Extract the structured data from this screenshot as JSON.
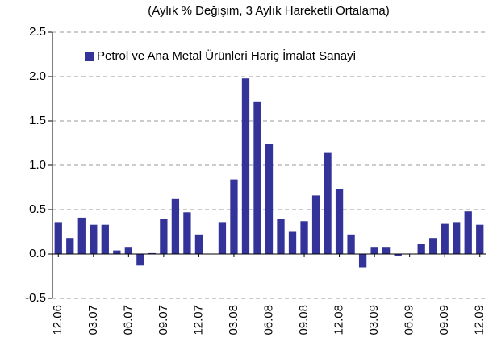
{
  "chart_data": {
    "type": "bar",
    "title": "(Aylık % Değişim, 3 Aylık Hareketli Ortalama)",
    "categories": [
      "12.06",
      null,
      null,
      "03.07",
      null,
      null,
      "06.07",
      null,
      null,
      "09.07",
      null,
      null,
      "12.07",
      null,
      null,
      "03.08",
      null,
      null,
      "06.08",
      null,
      null,
      "09.08",
      null,
      null,
      "12.08",
      null,
      null,
      "03.09",
      null,
      null,
      "06.09",
      null,
      null,
      "09.09",
      null,
      null,
      "12.09"
    ],
    "series": [
      {
        "name": "Petrol ve Ana Metal Ürünleri Hariç İmalat Sanayi",
        "color": "#333399",
        "values": [
          0.36,
          0.18,
          0.41,
          0.33,
          0.33,
          0.04,
          0.08,
          -0.13,
          0.01,
          0.4,
          0.62,
          0.47,
          0.22,
          0,
          0.36,
          0.84,
          1.98,
          1.72,
          1.24,
          0.4,
          0.25,
          0.37,
          0.66,
          1.14,
          0.73,
          0.22,
          -0.15,
          0.08,
          0.08,
          -0.02,
          0,
          0.11,
          0.18,
          0.34,
          0.36,
          0.48,
          0.33
        ]
      }
    ],
    "ylim": [
      -0.5,
      2.5
    ],
    "yticks": [
      -0.5,
      {
        "value": 0,
        "label": "0.0"
      },
      0.5,
      {
        "value": 1,
        "label": "1.0"
      },
      1.5,
      {
        "value": 2,
        "label": "2.0"
      },
      2.5
    ],
    "grid": true,
    "legend": "top-left"
  }
}
